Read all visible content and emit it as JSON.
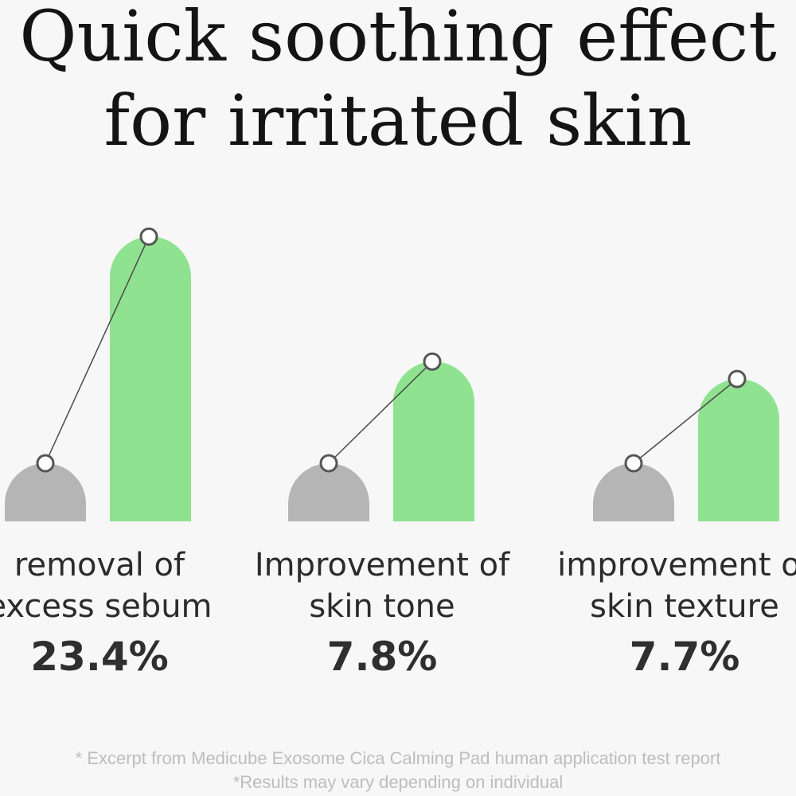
{
  "title": {
    "line1": "Quick soothing effect",
    "line2": "for irritated skin"
  },
  "chart_data": {
    "type": "bar",
    "categories": [
      "removal of excess sebum",
      "Improvement of skin tone",
      "improvement of skin texture"
    ],
    "category_lines": [
      [
        "removal of",
        "excess sebum"
      ],
      [
        "Improvement of",
        "skin tone"
      ],
      [
        "improvement of",
        "skin texture"
      ]
    ],
    "series": [
      {
        "color": "#b5b5b5",
        "values": [
          1.0,
          1.0,
          1.0
        ]
      },
      {
        "color": "#8fe28f",
        "values": [
          4.9,
          2.75,
          2.45
        ]
      }
    ],
    "value_labels": [
      "23.4%",
      "7.8%",
      "7.7%"
    ],
    "connector_color": "#4a4a4a",
    "marker_fill": "#ffffff",
    "marker_stroke": "#555555",
    "ylim": [
      0,
      5
    ],
    "grid": false,
    "legend": "none"
  },
  "footnotes": {
    "line1": "* Excerpt from Medicube Exosome Cica Calming Pad human application test report",
    "line2": "*Results may vary depending on individual"
  }
}
